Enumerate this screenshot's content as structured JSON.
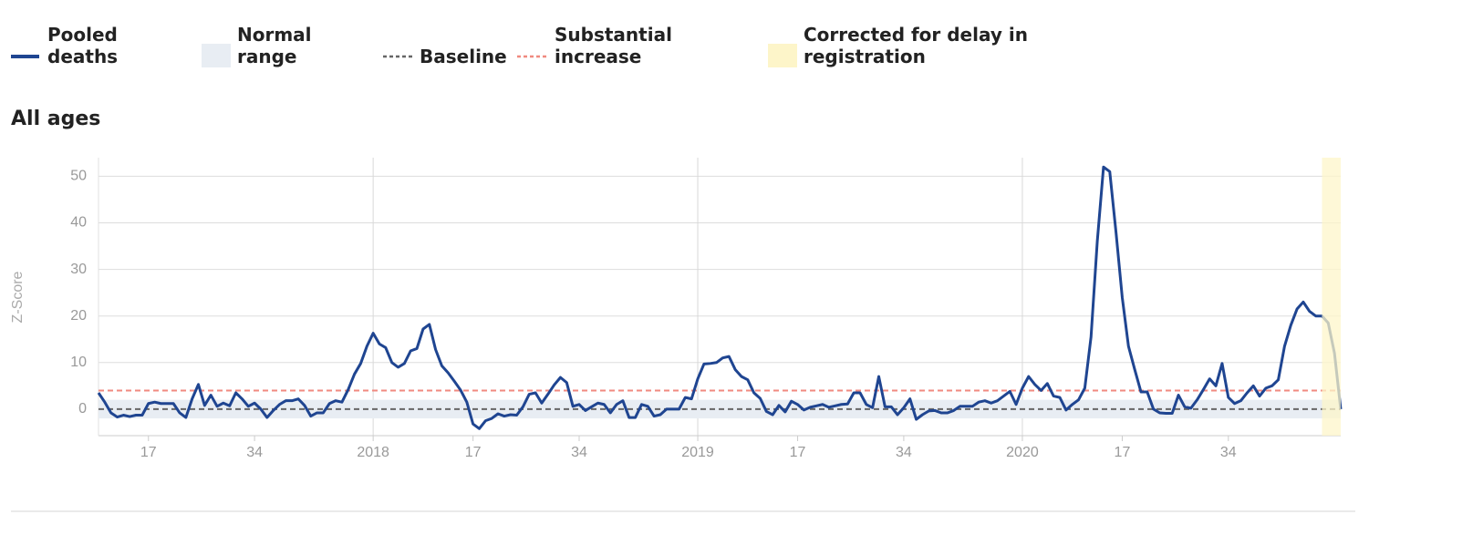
{
  "chart_data": {
    "type": "line",
    "title": "All ages",
    "y_label": "Z-Score",
    "x": [
      9,
      10,
      11,
      12,
      13,
      14,
      15,
      16,
      17,
      18,
      19,
      20,
      21,
      22,
      23,
      24,
      25,
      26,
      27,
      28,
      29,
      30,
      31,
      32,
      33,
      34,
      35,
      36,
      37,
      38,
      39,
      40,
      41,
      42,
      43,
      44,
      45,
      46,
      47,
      48,
      49,
      50,
      51,
      52,
      53,
      54,
      55,
      56,
      57,
      58,
      59,
      60,
      61,
      62,
      63,
      64,
      65,
      66,
      67,
      68,
      69,
      70,
      71,
      72,
      73,
      74,
      75,
      76,
      77,
      78,
      79,
      80,
      81,
      82,
      83,
      84,
      85,
      86,
      87,
      88,
      89,
      90,
      91,
      92,
      93,
      94,
      95,
      96,
      97,
      98,
      99,
      100,
      101,
      102,
      103,
      104,
      105,
      106,
      107,
      108,
      109,
      110,
      111,
      112,
      113,
      114,
      115,
      116,
      117,
      118,
      119,
      120,
      121,
      122,
      123,
      124,
      125,
      126,
      127,
      128,
      129,
      130,
      131,
      132,
      133,
      134,
      135,
      136,
      137,
      138,
      139,
      140,
      141,
      142,
      143,
      144,
      145,
      146,
      147,
      148,
      149,
      150,
      151,
      152,
      153,
      154,
      155,
      156,
      157,
      158,
      159,
      160,
      161,
      162,
      163,
      164,
      165,
      166,
      167,
      168,
      169,
      170,
      171,
      172,
      173,
      174,
      175,
      176,
      177,
      178,
      179,
      180,
      181,
      182,
      183,
      184,
      185,
      186,
      187,
      188,
      189,
      190,
      191,
      192,
      193,
      194,
      195,
      196,
      197,
      198,
      199,
      200,
      201,
      202,
      203,
      204,
      205,
      206,
      207,
      208
    ],
    "series": [
      {
        "name": "Pooled deaths",
        "color": "#1f4591",
        "values": [
          3.5,
          1.5,
          -0.8,
          -1.7,
          -1.3,
          -1.6,
          -1.3,
          -1.3,
          1.2,
          1.5,
          1.2,
          1.2,
          1.2,
          -0.8,
          -1.8,
          2.2,
          5.3,
          0.8,
          3,
          0.6,
          1.3,
          0.7,
          3.5,
          2.2,
          0.6,
          1.3,
          0,
          -1.8,
          -0.3,
          1,
          1.8,
          1.8,
          2.2,
          0.8,
          -1.5,
          -0.8,
          -0.8,
          1.2,
          1.8,
          1.5,
          4.2,
          7.5,
          9.8,
          13.5,
          16.3,
          14,
          13.2,
          10,
          9,
          9.8,
          12.5,
          13,
          17.2,
          18.2,
          12.8,
          9.3,
          7.8,
          6,
          4.1,
          1.5,
          -3.2,
          -4.2,
          -2.5,
          -2,
          -1,
          -1.5,
          -1.2,
          -1.3,
          0.5,
          3.2,
          3.5,
          1.3,
          3.2,
          5.2,
          6.8,
          5.7,
          0.6,
          1,
          -0.3,
          0.5,
          1.3,
          1,
          -0.8,
          1,
          1.8,
          -1.8,
          -1.8,
          1,
          0.6,
          -1.5,
          -1.2,
          0,
          0,
          0,
          2.5,
          2.2,
          6.5,
          9.7,
          9.8,
          10,
          11,
          11.3,
          8.5,
          7,
          6.3,
          3.5,
          2.3,
          -0.5,
          -1.2,
          0.8,
          -0.6,
          1.7,
          1,
          -0.2,
          0.4,
          0.7,
          1,
          0.4,
          0.7,
          1,
          1.1,
          3.5,
          3.5,
          1,
          0.3,
          7,
          0.5,
          0.5,
          -1.2,
          0.3,
          2.2,
          -2.2,
          -1.2,
          -0.4,
          -0.3,
          -0.8,
          -0.8,
          -0.3,
          0.6,
          0.6,
          0.6,
          1.5,
          1.8,
          1.3,
          1.8,
          2.8,
          3.8,
          1,
          4.5,
          7,
          5.3,
          4,
          5.5,
          2.8,
          2.5,
          -0.2,
          1,
          2,
          4.5,
          15.5,
          36,
          52,
          51,
          38,
          24,
          13.5,
          8.5,
          3.7,
          3.7,
          0,
          -0.8,
          -0.9,
          -0.9,
          3,
          0.5,
          0.2,
          2,
          4.2,
          6.5,
          5,
          9.8,
          2.5,
          1.2,
          1.8,
          3.5,
          5,
          2.8,
          4.5,
          5,
          6.3,
          13.5,
          18,
          21.5,
          23,
          21,
          20,
          20,
          18.5,
          12,
          0
        ]
      }
    ],
    "normal_range": {
      "name": "Normal range",
      "range": [
        -2,
        2
      ],
      "color": "#e8edf3"
    },
    "baseline": {
      "name": "Baseline",
      "value": 0,
      "color": "#666666"
    },
    "substantial_increase": {
      "name": "Substantial increase",
      "value": 4,
      "color": "#f08a80"
    },
    "corrected": {
      "name": "Corrected for delay in registration",
      "xrange": [
        205,
        208
      ],
      "color": "#fdf5c9"
    },
    "xlim": [
      9,
      208
    ],
    "ylim": [
      -5.7,
      54
    ],
    "xticks": [
      17,
      34,
      {
        "value": 53,
        "label": "2018"
      },
      {
        "value": 69,
        "label": "17"
      },
      {
        "value": 86,
        "label": "34"
      },
      {
        "value": 105,
        "label": "2019"
      },
      {
        "value": 121,
        "label": "17"
      },
      {
        "value": 138,
        "label": "34"
      },
      {
        "value": 157,
        "label": "2020"
      },
      {
        "value": 173,
        "label": "17"
      },
      {
        "value": 190,
        "label": "34"
      }
    ],
    "yticks": [
      0,
      10,
      20,
      30,
      40,
      50
    ],
    "grid": true
  }
}
